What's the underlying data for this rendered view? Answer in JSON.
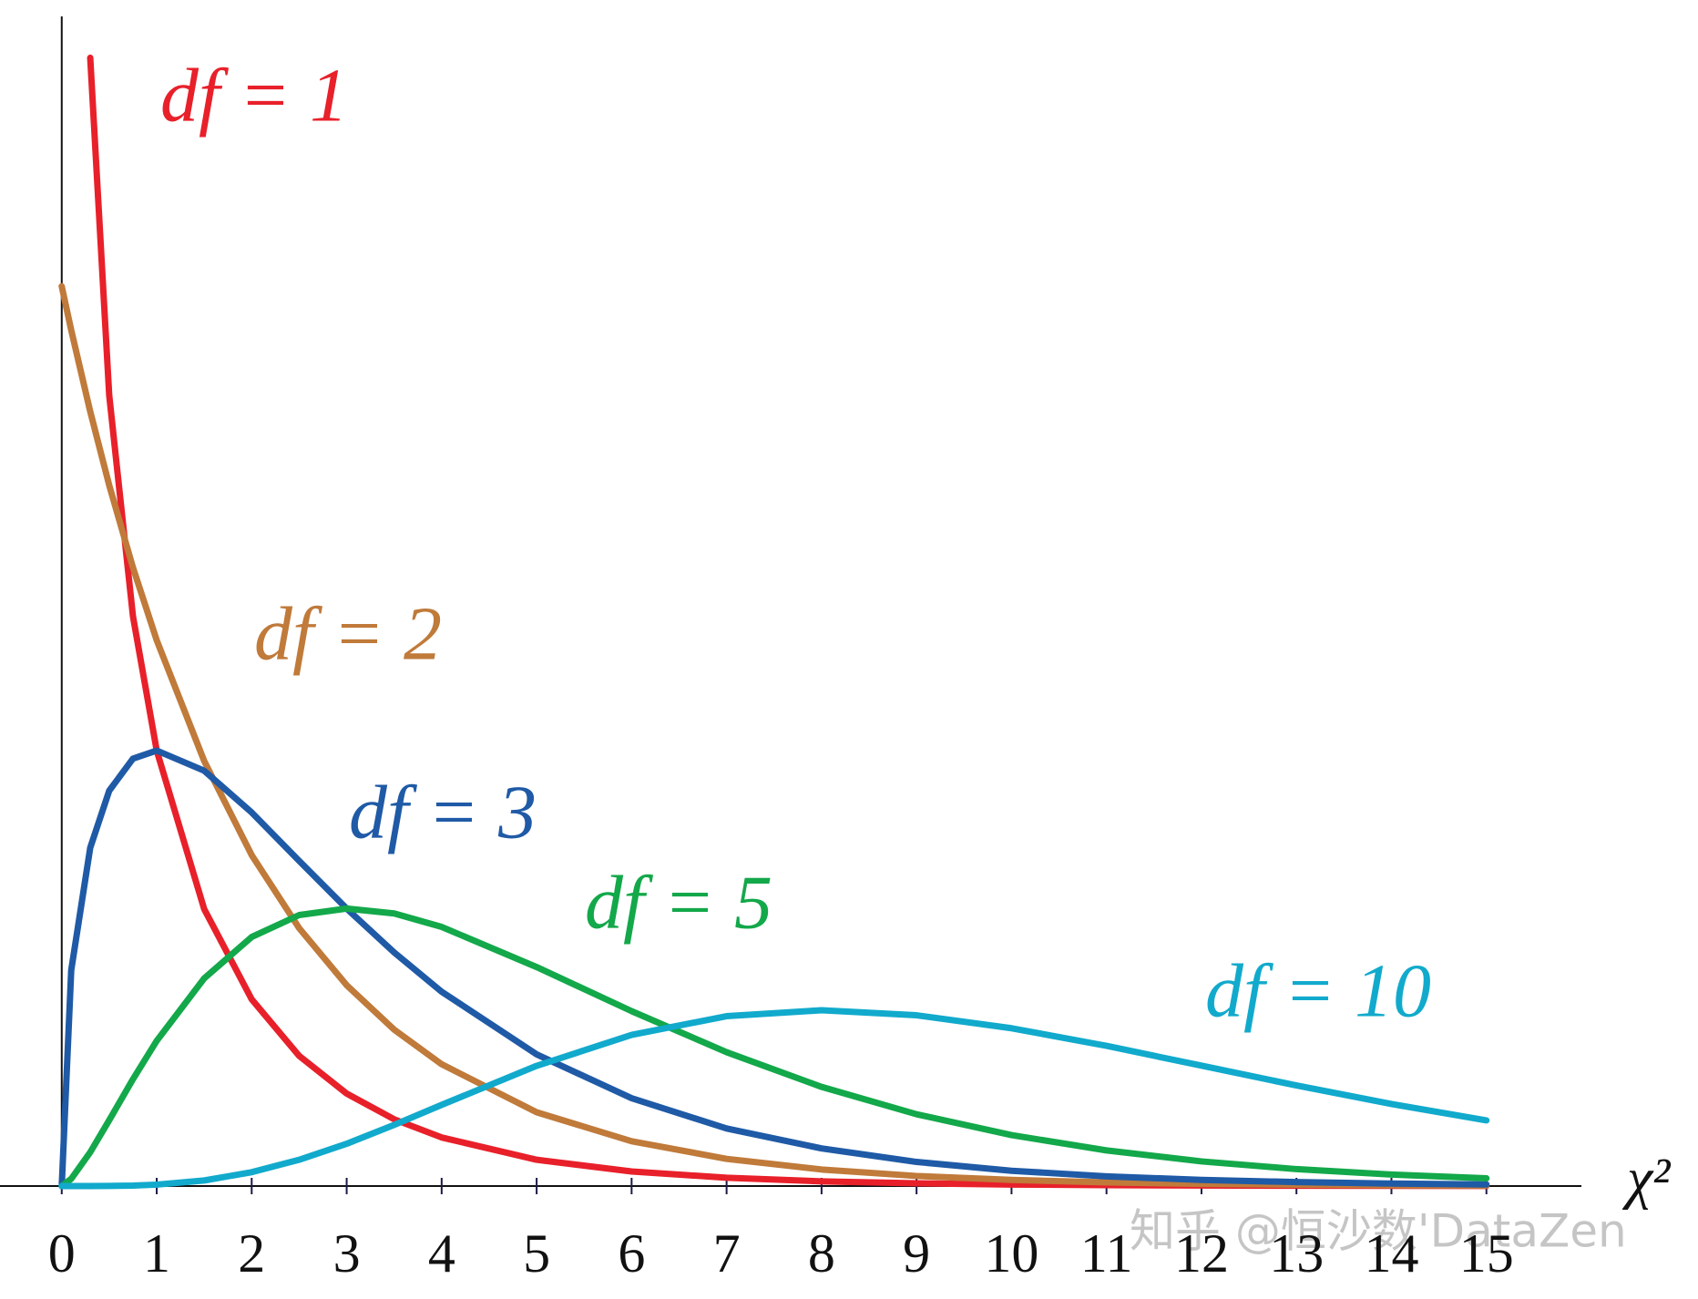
{
  "chart_data": {
    "type": "line",
    "x_label": "χ²",
    "watermark": "知乎 @恒沙数'DataZen",
    "x": [
      0,
      0.1,
      0.3,
      0.5,
      0.75,
      1,
      1.5,
      2,
      2.5,
      3,
      3.5,
      4,
      5,
      6,
      7,
      8,
      9,
      10,
      11,
      12,
      13,
      14,
      15
    ],
    "series": [
      {
        "name": "df = 1",
        "color": "#e8202a",
        "values": [
          null,
          null,
          0.627,
          0.4394,
          0.3166,
          0.242,
          0.1539,
          0.1038,
          0.0723,
          0.0514,
          0.0371,
          0.027,
          0.0146,
          0.0081,
          0.0046,
          0.0026,
          0.0015,
          0.00085,
          0.00049,
          0.00029,
          0.00017,
          0.0001,
          6e-05
        ]
      },
      {
        "name": "df = 2",
        "color": "#c07a3a",
        "values": [
          0.5,
          0.4756,
          0.4304,
          0.3894,
          0.3437,
          0.3033,
          0.2362,
          0.1839,
          0.1433,
          0.1116,
          0.0869,
          0.0677,
          0.041,
          0.0249,
          0.0151,
          0.0092,
          0.0056,
          0.0034,
          0.002,
          0.0012,
          0.00075,
          0.00046,
          0.00028
        ]
      },
      {
        "name": "df = 3",
        "color": "#1f5aa6",
        "values": [
          0,
          0.12,
          0.188,
          0.2197,
          0.2375,
          0.242,
          0.2308,
          0.2076,
          0.1807,
          0.1542,
          0.1298,
          0.108,
          0.0732,
          0.0488,
          0.032,
          0.0209,
          0.0134,
          0.0085,
          0.0054,
          0.0034,
          0.0022,
          0.0014,
          0.0009
        ]
      },
      {
        "name": "df = 5",
        "color": "#13a84a",
        "values": [
          0,
          0.004,
          0.0188,
          0.0366,
          0.0594,
          0.0807,
          0.1154,
          0.1384,
          0.1506,
          0.1542,
          0.1515,
          0.144,
          0.1217,
          0.0972,
          0.0744,
          0.0551,
          0.0399,
          0.0283,
          0.0198,
          0.0137,
          0.0094,
          0.0064,
          0.0043
        ]
      },
      {
        "name": "df = 10",
        "color": "#11aacc",
        "values": [
          0,
          0,
          1e-05,
          6e-05,
          0.00028,
          0.00079,
          0.0031,
          0.0077,
          0.0146,
          0.0235,
          0.034,
          0.0451,
          0.0668,
          0.084,
          0.0944,
          0.0977,
          0.0949,
          0.0877,
          0.0779,
          0.0669,
          0.0559,
          0.0456,
          0.0365
        ]
      }
    ],
    "xlim": [
      -0.65,
      16
    ],
    "ylim": [
      0,
      0.65
    ],
    "xticks": [
      0,
      1,
      2,
      3,
      4,
      5,
      6,
      7,
      8,
      9,
      10,
      11,
      12,
      13,
      14,
      15
    ]
  }
}
